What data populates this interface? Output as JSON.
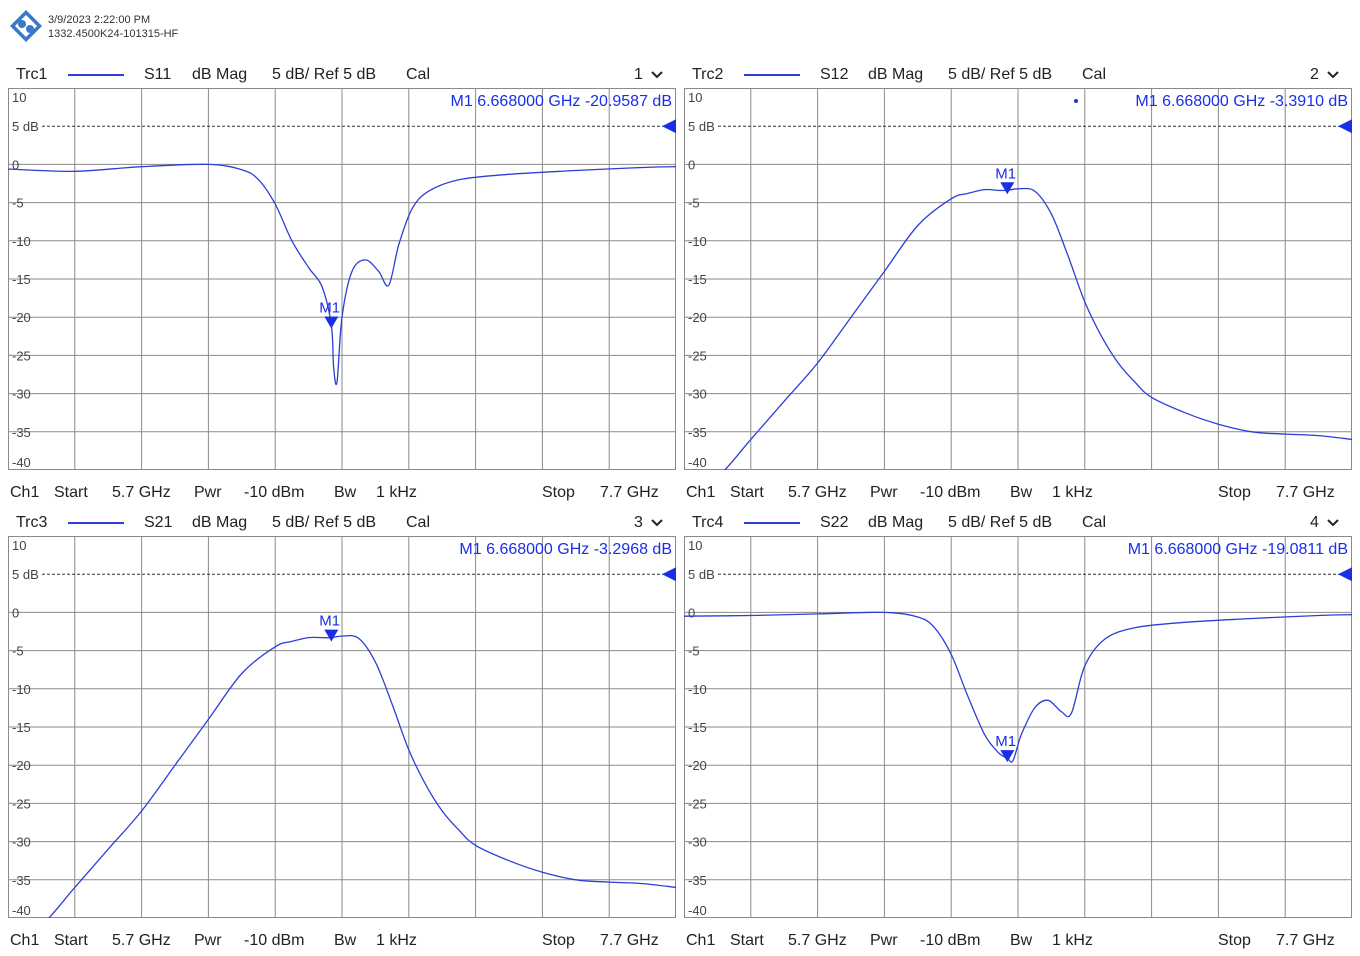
{
  "header": {
    "timestamp": "3/9/2023 2:22:00 PM",
    "serial": "1332.4500K24-101315-HF",
    "logo_icon": "rs-logo-icon"
  },
  "colors": {
    "trace": "#2b3fd6",
    "marker": "#1a2ee8",
    "grid": "#8a8a8a",
    "ref": "#333333"
  },
  "chart_data": [
    {
      "type": "line",
      "trace": "Trc1",
      "param": "S11",
      "format": "dB Mag",
      "scale": "5 dB/ Ref 5 dB",
      "cal": "Cal",
      "window": "1",
      "ylim": [
        -40,
        10
      ],
      "y_ticks": [
        "10",
        "5 dB",
        "0",
        "-5",
        "-10",
        "-15",
        "-20",
        "-25",
        "-30",
        "-35",
        "-40"
      ],
      "ref_label": "5 dB",
      "ref_value": 5,
      "xlim": [
        5.7,
        7.7
      ],
      "marker": {
        "name": "M1",
        "x": 6.668,
        "y": -20.9587,
        "readout": "M1  6.668000  GHz  -20.9587  dB",
        "dot": false
      },
      "series": [
        {
          "x": [
            5.7,
            5.9,
            6.1,
            6.3,
            6.4,
            6.45,
            6.5,
            6.55,
            6.6,
            6.64,
            6.668,
            6.675,
            6.685,
            6.7,
            6.73,
            6.77,
            6.81,
            6.84,
            6.87,
            6.91,
            6.96,
            7.05,
            7.2,
            7.4,
            7.6,
            7.7
          ],
          "y": [
            -0.6,
            -0.9,
            -0.3,
            0.0,
            -0.7,
            -2.0,
            -5.2,
            -10.0,
            -13.5,
            -16.0,
            -21.0,
            -26.5,
            -28.5,
            -20.0,
            -14.0,
            -12.5,
            -14.0,
            -15.8,
            -10.5,
            -5.8,
            -3.5,
            -2.0,
            -1.3,
            -0.8,
            -0.4,
            -0.3
          ]
        }
      ],
      "footer": {
        "ch": "Ch1",
        "start_label": "Start",
        "start": "5.7 GHz",
        "pwr_label": "Pwr",
        "pwr": "-10 dBm",
        "bw_label": "Bw",
        "bw": "1 kHz",
        "stop_label": "Stop",
        "stop": "7.7 GHz"
      }
    },
    {
      "type": "line",
      "trace": "Trc2",
      "param": "S12",
      "format": "dB Mag",
      "scale": "5 dB/ Ref 5 dB",
      "cal": "Cal",
      "window": "2",
      "ylim": [
        -40,
        10
      ],
      "y_ticks": [
        "10",
        "5 dB",
        "0",
        "-5",
        "-10",
        "-15",
        "-20",
        "-25",
        "-30",
        "-35",
        "-40"
      ],
      "ref_label": "5 dB",
      "ref_value": 5,
      "xlim": [
        5.7,
        7.7
      ],
      "marker": {
        "name": "M1",
        "x": 6.668,
        "y": -3.391,
        "readout": "M1  6.668000  GHz  -3.3910  dB",
        "dot": true
      },
      "series": [
        {
          "x": [
            5.7,
            5.8,
            5.9,
            6.0,
            6.1,
            6.2,
            6.3,
            6.4,
            6.5,
            6.55,
            6.6,
            6.64,
            6.668,
            6.7,
            6.75,
            6.8,
            6.85,
            6.9,
            6.95,
            7.0,
            7.05,
            7.1,
            7.2,
            7.3,
            7.4,
            7.5,
            7.6,
            7.7
          ],
          "y": [
            -44.0,
            -41.0,
            -36.0,
            -31.0,
            -26.0,
            -20.0,
            -14.0,
            -8.0,
            -4.5,
            -3.8,
            -3.3,
            -3.4,
            -3.4,
            -3.2,
            -3.5,
            -6.5,
            -12.0,
            -18.0,
            -22.5,
            -26.0,
            -28.5,
            -30.5,
            -32.5,
            -34.0,
            -35.0,
            -35.3,
            -35.5,
            -36.0
          ]
        }
      ],
      "footer": {
        "ch": "Ch1",
        "start_label": "Start",
        "start": "5.7 GHz",
        "pwr_label": "Pwr",
        "pwr": "-10 dBm",
        "bw_label": "Bw",
        "bw": "1 kHz",
        "stop_label": "Stop",
        "stop": "7.7 GHz"
      }
    },
    {
      "type": "line",
      "trace": "Trc3",
      "param": "S21",
      "format": "dB Mag",
      "scale": "5 dB/ Ref 5 dB",
      "cal": "Cal",
      "window": "3",
      "ylim": [
        -40,
        10
      ],
      "y_ticks": [
        "10",
        "5 dB",
        "0",
        "-5",
        "-10",
        "-15",
        "-20",
        "-25",
        "-30",
        "-35",
        "-40"
      ],
      "ref_label": "5 dB",
      "ref_value": 5,
      "xlim": [
        5.7,
        7.7
      ],
      "marker": {
        "name": "M1",
        "x": 6.668,
        "y": -3.2968,
        "readout": "M1  6.668000  GHz  -3.2968  dB",
        "dot": false
      },
      "series": [
        {
          "x": [
            5.7,
            5.8,
            5.9,
            6.0,
            6.1,
            6.2,
            6.3,
            6.4,
            6.5,
            6.55,
            6.6,
            6.64,
            6.668,
            6.7,
            6.75,
            6.8,
            6.85,
            6.9,
            6.95,
            7.0,
            7.05,
            7.1,
            7.2,
            7.3,
            7.4,
            7.5,
            7.6,
            7.7
          ],
          "y": [
            -44.0,
            -41.0,
            -36.0,
            -31.0,
            -26.0,
            -20.0,
            -14.0,
            -8.0,
            -4.5,
            -3.8,
            -3.3,
            -3.3,
            -3.3,
            -3.1,
            -3.4,
            -6.5,
            -12.0,
            -18.0,
            -22.5,
            -26.0,
            -28.5,
            -30.5,
            -32.5,
            -34.0,
            -35.0,
            -35.3,
            -35.5,
            -36.0
          ]
        }
      ],
      "footer": {
        "ch": "Ch1",
        "start_label": "Start",
        "start": "5.7 GHz",
        "pwr_label": "Pwr",
        "pwr": "-10 dBm",
        "bw_label": "Bw",
        "bw": "1 kHz",
        "stop_label": "Stop",
        "stop": "7.7 GHz"
      }
    },
    {
      "type": "line",
      "trace": "Trc4",
      "param": "S22",
      "format": "dB Mag",
      "scale": "5 dB/ Ref 5 dB",
      "cal": "Cal",
      "window": "4",
      "ylim": [
        -40,
        10
      ],
      "y_ticks": [
        "10",
        "5 dB",
        "0",
        "-5",
        "-10",
        "-15",
        "-20",
        "-25",
        "-30",
        "-35",
        "-40"
      ],
      "ref_label": "5 dB",
      "ref_value": 5,
      "xlim": [
        5.7,
        7.7
      ],
      "marker": {
        "name": "M1",
        "x": 6.668,
        "y": -19.0811,
        "readout": "M1  6.668000  GHz  -19.0811  dB",
        "dot": false
      },
      "series": [
        {
          "x": [
            5.7,
            5.9,
            6.1,
            6.3,
            6.4,
            6.45,
            6.5,
            6.55,
            6.6,
            6.64,
            6.668,
            6.685,
            6.71,
            6.75,
            6.79,
            6.83,
            6.86,
            6.9,
            6.96,
            7.05,
            7.2,
            7.4,
            7.6,
            7.7
          ],
          "y": [
            -0.5,
            -0.4,
            -0.2,
            0.0,
            -0.6,
            -2.0,
            -5.5,
            -11.0,
            -16.0,
            -18.3,
            -19.1,
            -19.4,
            -16.0,
            -12.5,
            -11.5,
            -13.0,
            -13.2,
            -7.0,
            -3.5,
            -2.0,
            -1.3,
            -0.8,
            -0.4,
            -0.3
          ]
        }
      ],
      "footer": {
        "ch": "Ch1",
        "start_label": "Start",
        "start": "5.7 GHz",
        "pwr_label": "Pwr",
        "pwr": "-10 dBm",
        "bw_label": "Bw",
        "bw": "1 kHz",
        "stop_label": "Stop",
        "stop": "7.7 GHz"
      }
    }
  ]
}
